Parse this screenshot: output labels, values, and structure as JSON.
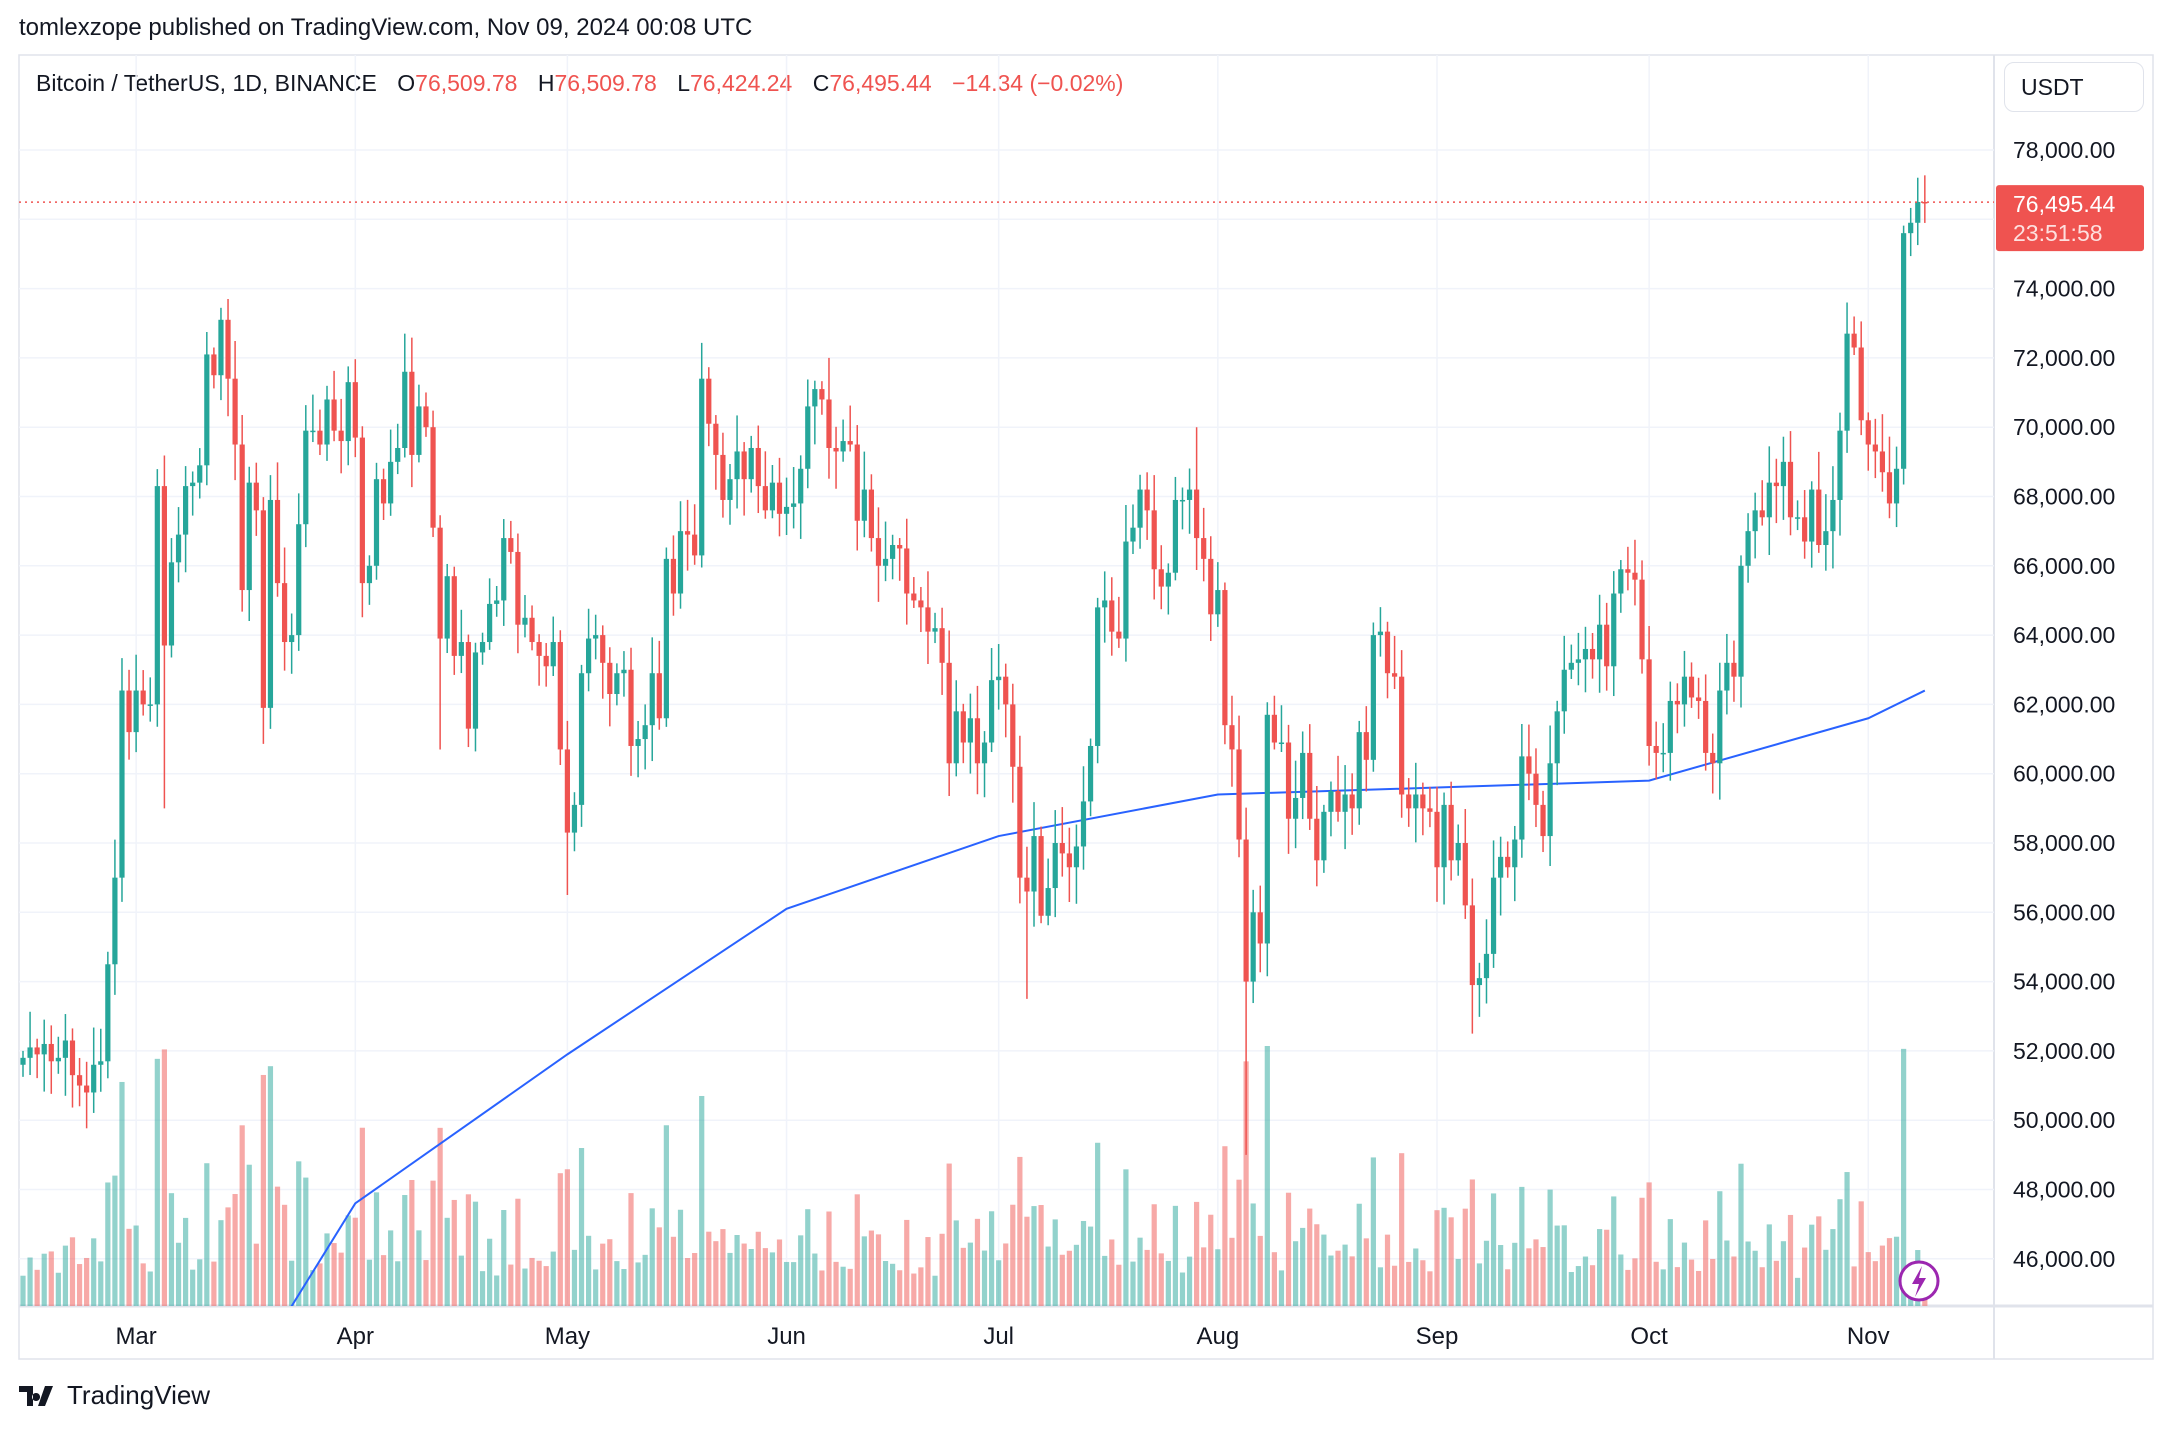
{
  "header": {
    "published": "tomlexzope published on TradingView.com, Nov 09, 2024 00:08 UTC"
  },
  "legend": {
    "symbol": "Bitcoin / TetherUS, 1D, BINANCE",
    "o_label": "O",
    "o": "76,509.78",
    "h_label": "H",
    "h": "76,509.78",
    "l_label": "L",
    "l": "76,424.24",
    "c_label": "C",
    "c": "76,495.44",
    "change": "−14.34 (−0.02%)"
  },
  "price_axis": {
    "currency": "USDT",
    "last_price": "76,495.44",
    "countdown": "23:51:58"
  },
  "footer": {
    "brand": "TradingView"
  },
  "colors": {
    "up": "#26a69a",
    "down": "#ef5350",
    "ma": "#2962ff",
    "bolt": "#9c27b0",
    "grid": "#f0f3fa"
  },
  "icons": {
    "logo": "tradingview-logo-icon",
    "bolt": "lightning-bolt-icon"
  },
  "chart_data": {
    "type": "candlestick",
    "title": "Bitcoin / TetherUS, 1D, BINANCE",
    "x_range": [
      "2024-02-14",
      "2024-11-09"
    ],
    "ylim": [
      44700,
      79500
    ],
    "grid": true,
    "y_ticks": [
      46000,
      48000,
      50000,
      52000,
      54000,
      56000,
      58000,
      60000,
      62000,
      64000,
      66000,
      68000,
      70000,
      72000,
      74000,
      78000
    ],
    "x_ticks": [
      {
        "date": "2024-03-01",
        "label": "Mar"
      },
      {
        "date": "2024-04-01",
        "label": "Apr"
      },
      {
        "date": "2024-05-01",
        "label": "May"
      },
      {
        "date": "2024-06-01",
        "label": "Jun"
      },
      {
        "date": "2024-07-01",
        "label": "Jul"
      },
      {
        "date": "2024-08-01",
        "label": "Aug"
      },
      {
        "date": "2024-09-01",
        "label": "Sep"
      },
      {
        "date": "2024-10-01",
        "label": "Oct"
      },
      {
        "date": "2024-11-01",
        "label": "Nov"
      }
    ],
    "last_price": 76495.44,
    "close": [
      51800,
      52100,
      51900,
      52200,
      51700,
      51800,
      52300,
      51300,
      51000,
      50800,
      51600,
      51700,
      54500,
      57000,
      62400,
      61200,
      62400,
      62000,
      62000,
      68300,
      63700,
      66100,
      66900,
      68300,
      68400,
      68900,
      72100,
      71500,
      73100,
      71400,
      69500,
      65300,
      68400,
      67600,
      61900,
      67900,
      65500,
      63800,
      64000,
      67200,
      69900,
      69900,
      69500,
      70800,
      69900,
      69600,
      71300,
      69700,
      65500,
      66000,
      68500,
      67800,
      69000,
      69400,
      71600,
      69200,
      70600,
      70000,
      67100,
      63900,
      65700,
      63400,
      63800,
      61300,
      63500,
      63800,
      64900,
      65000,
      66800,
      66400,
      64300,
      64500,
      63800,
      63400,
      63100,
      63800,
      60700,
      58300,
      59100,
      62900,
      63900,
      64000,
      63200,
      62300,
      62900,
      63000,
      60800,
      61000,
      61400,
      62900,
      61600,
      66200,
      65200,
      67000,
      66900,
      66300,
      71400,
      70100,
      69200,
      67900,
      68500,
      69300,
      68500,
      69400,
      68300,
      67600,
      68400,
      67500,
      67700,
      67800,
      68800,
      70600,
      71100,
      70800,
      69400,
      69300,
      69600,
      69500,
      67300,
      68200,
      66800,
      66000,
      66200,
      66600,
      66500,
      65200,
      65000,
      64800,
      64100,
      64200,
      63200,
      60300,
      61800,
      60900,
      61600,
      60300,
      60900,
      62700,
      62800,
      62000,
      60200,
      57000,
      56600,
      58200,
      55900,
      56700,
      58000,
      57700,
      57300,
      57900,
      59200,
      60800,
      64800,
      65000,
      64100,
      63900,
      66700,
      67100,
      68200,
      67600,
      65900,
      65400,
      65800,
      67900,
      67900,
      68200,
      66800,
      66200,
      64600,
      65300,
      61400,
      60700,
      58100,
      54000,
      56000,
      55100,
      61700,
      60900,
      60900,
      58700,
      59300,
      60600,
      58700,
      57500,
      58900,
      59500,
      58900,
      59400,
      59000,
      61200,
      60400,
      64000,
      64100,
      62900,
      62800,
      59400,
      59000,
      59400,
      59000,
      58900,
      57300,
      59100,
      57500,
      58000,
      56200,
      53900,
      54100,
      54800,
      57000,
      57600,
      57300,
      58100,
      60500,
      60000,
      59100,
      58200,
      60300,
      61800,
      63000,
      63200,
      63300,
      63600,
      63300,
      64300,
      63100,
      65200,
      65900,
      65800,
      65600,
      63300,
      60800,
      60600,
      60600,
      62100,
      62000,
      62800,
      62200,
      62100,
      60600,
      60300,
      62400,
      63200,
      62800,
      66000,
      67000,
      67600,
      67400,
      68400,
      68300,
      69000,
      67400,
      67400,
      66700,
      68200,
      66600,
      67000,
      67900,
      69900,
      72700,
      72300,
      70200,
      69500,
      69300,
      68700,
      67800,
      68800,
      75600,
      75900,
      76500,
      76495.44
    ],
    "extremes": {
      "2024-03-05": {
        "low": 59000
      },
      "2024-03-14": {
        "high": 73700
      },
      "2024-04-08": {
        "high": 72700
      },
      "2024-04-13": {
        "low": 60700
      },
      "2024-05-01": {
        "low": 56500
      },
      "2024-06-07": {
        "high": 72000
      },
      "2024-07-05": {
        "low": 53500
      },
      "2024-07-29": {
        "high": 70000
      },
      "2024-08-05": {
        "low": 49000
      },
      "2024-09-06": {
        "low": 52500
      },
      "2024-10-29": {
        "high": 73600
      },
      "2024-11-08": {
        "high": 77200
      }
    },
    "moving_average": [
      {
        "date": "2024-03-15",
        "value": 42000
      },
      {
        "date": "2024-04-01",
        "value": 47600
      },
      {
        "date": "2024-05-01",
        "value": 51900
      },
      {
        "date": "2024-06-01",
        "value": 56100
      },
      {
        "date": "2024-07-01",
        "value": 58200
      },
      {
        "date": "2024-08-01",
        "value": 59400
      },
      {
        "date": "2024-09-01",
        "value": 59600
      },
      {
        "date": "2024-10-01",
        "value": 59800
      },
      {
        "date": "2024-11-01",
        "value": 61600
      },
      {
        "date": "2024-11-09",
        "value": 62400
      }
    ]
  }
}
